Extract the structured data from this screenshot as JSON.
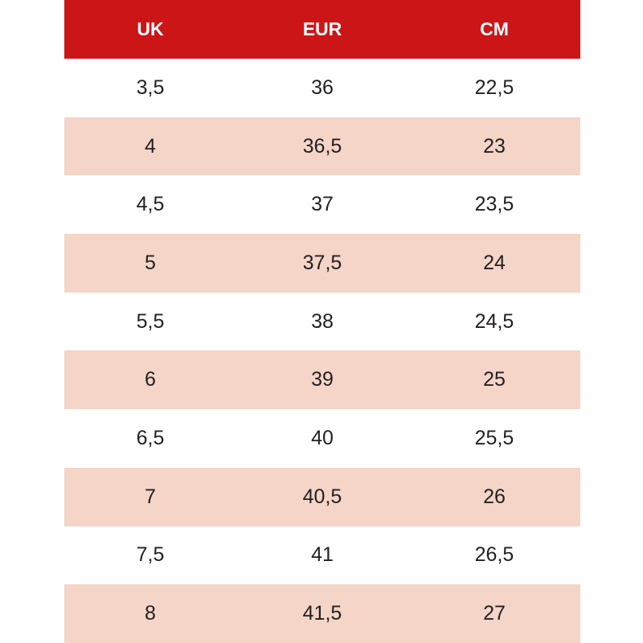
{
  "table": {
    "header": [
      "UK",
      "EUR",
      "CM"
    ],
    "rows": [
      [
        "3,5",
        "36",
        "22,5"
      ],
      [
        "4",
        "36,5",
        "23"
      ],
      [
        "4,5",
        "37",
        "23,5"
      ],
      [
        "5",
        "37,5",
        "24"
      ],
      [
        "5,5",
        "38",
        "24,5"
      ],
      [
        "6",
        "39",
        "25"
      ],
      [
        "6,5",
        "40",
        "25,5"
      ],
      [
        "7",
        "40,5",
        "26"
      ],
      [
        "7,5",
        "41",
        "26,5"
      ],
      [
        "8",
        "41,5",
        "27"
      ]
    ]
  }
}
